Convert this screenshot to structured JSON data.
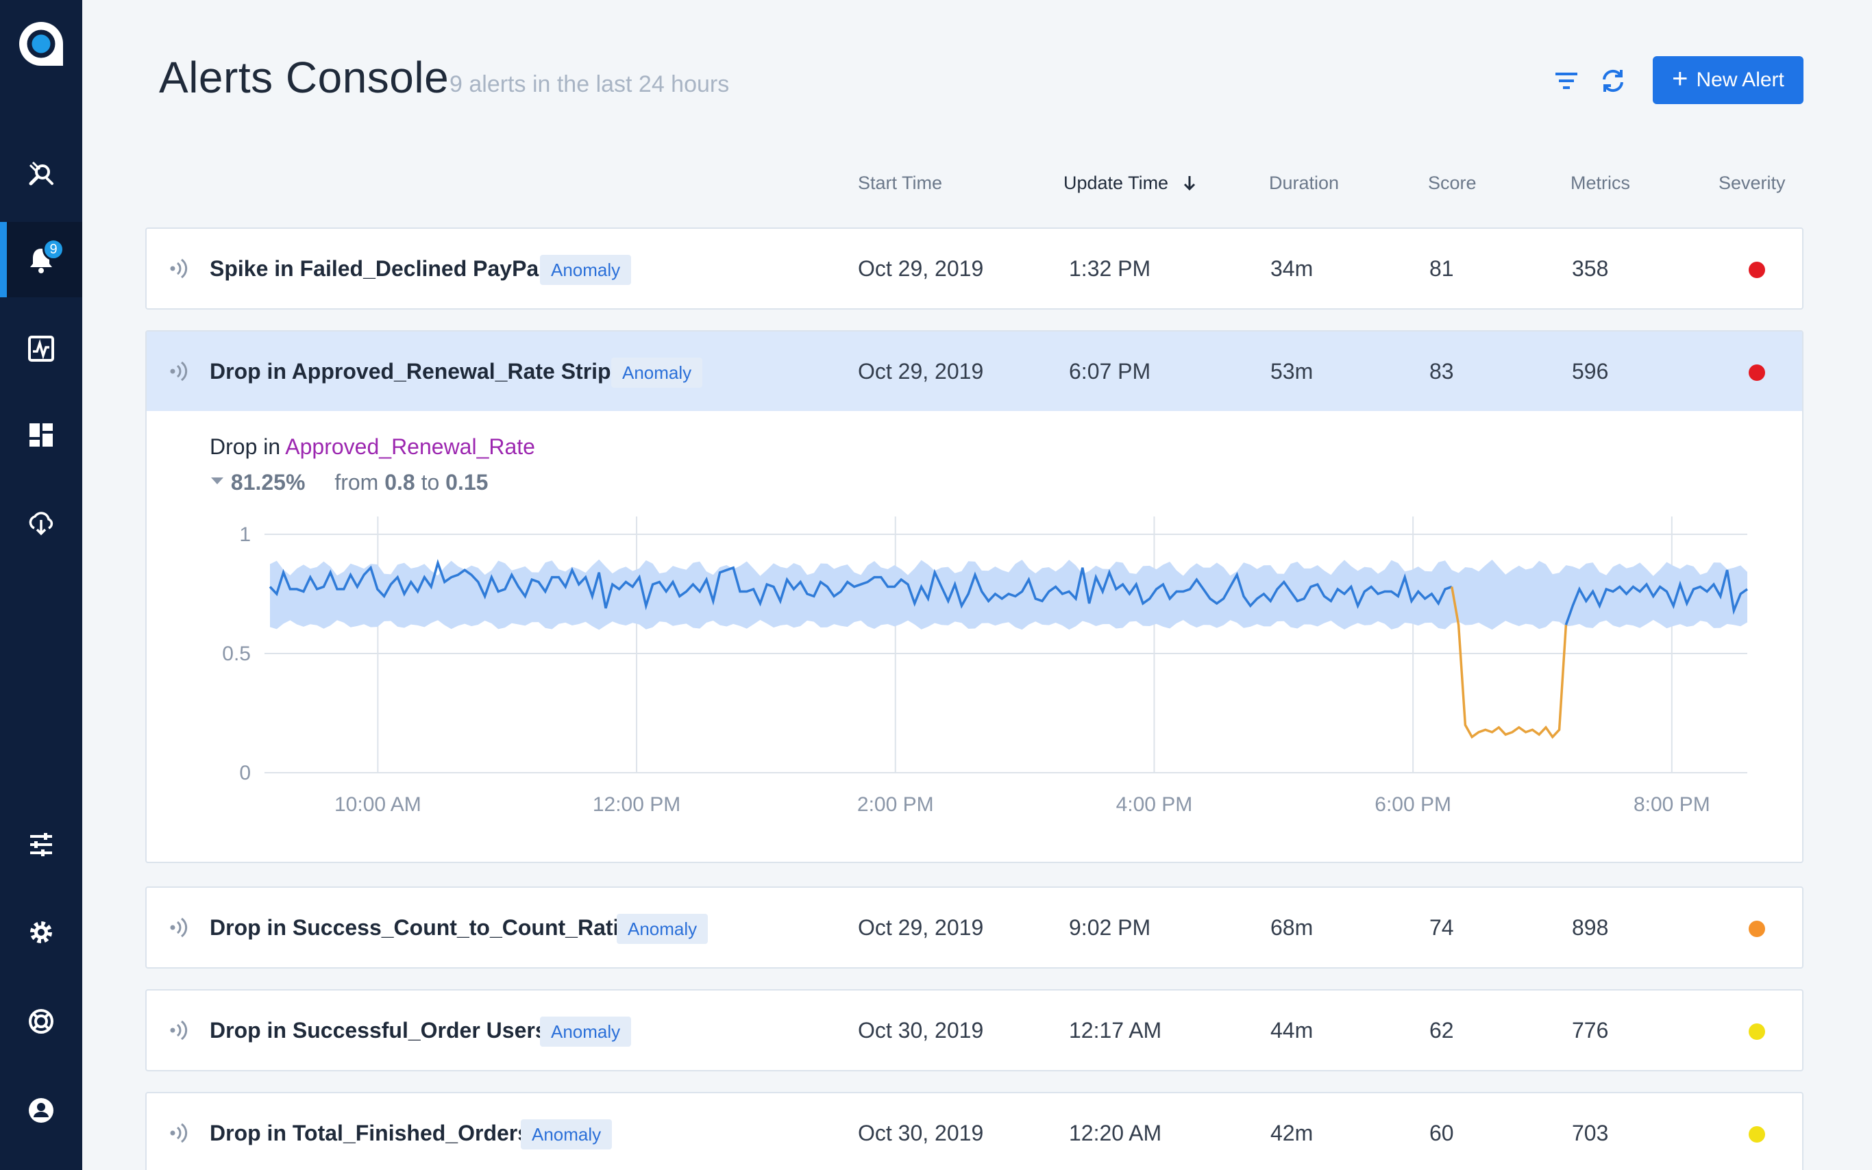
{
  "sidebar": {
    "badge_count": "9",
    "items": [
      {
        "icon": "search-satellite-icon"
      },
      {
        "icon": "bell-icon",
        "active": true
      },
      {
        "icon": "activity-chart-icon"
      },
      {
        "icon": "dashboard-icon"
      },
      {
        "icon": "cloud-download-icon"
      },
      {
        "icon": "sliders-icon"
      },
      {
        "icon": "gear-icon"
      },
      {
        "icon": "help-lifebuoy-icon"
      },
      {
        "icon": "user-icon"
      }
    ]
  },
  "header": {
    "title": "Alerts Console",
    "subtitle": "9 alerts in the last 24 hours",
    "new_alert_label": "New Alert"
  },
  "columns": {
    "start": "Start Time",
    "update": "Update Time",
    "duration": "Duration",
    "score": "Score",
    "metrics": "Metrics",
    "severity": "Severity"
  },
  "colors": {
    "accent": "#1f74e6",
    "sev_high": "#e31b23",
    "sev_medium": "#f5922b",
    "sev_low": "#f2e016",
    "band": "#c7dcfa",
    "line": "#2f7bd8",
    "anomaly_line": "#e8a23b"
  },
  "alerts": [
    {
      "name": "Spike in Failed_Declined PayPal",
      "tag": "Anomaly",
      "start": "Oct 29, 2019",
      "update": "1:32 PM",
      "duration": "34m",
      "score": "81",
      "metrics": "358",
      "severity": "high"
    },
    {
      "name": "Drop in Approved_Renewal_Rate Stripe",
      "tag": "Anomaly",
      "start": "Oct 29, 2019",
      "update": "6:07 PM",
      "duration": "53m",
      "score": "83",
      "metrics": "596",
      "severity": "high"
    },
    {
      "name": "Drop in Success_Count_to_Count_Ratio",
      "tag": "Anomaly",
      "start": "Oct 29, 2019",
      "update": "9:02 PM",
      "duration": "68m",
      "score": "74",
      "metrics": "898",
      "severity": "medium"
    },
    {
      "name": "Drop in Successful_Order Users",
      "tag": "Anomaly",
      "start": "Oct 30, 2019",
      "update": "12:17 AM",
      "duration": "44m",
      "score": "62",
      "metrics": "776",
      "severity": "low"
    },
    {
      "name": "Drop in Total_Finished_Orders",
      "tag": "Anomaly",
      "start": "Oct 30, 2019",
      "update": "12:20 AM",
      "duration": "42m",
      "score": "60",
      "metrics": "703",
      "severity": "low"
    }
  ],
  "detail": {
    "prefix": "Drop in",
    "metric": "Approved_Renewal_Rate",
    "change": "81.25%",
    "from_word": "from",
    "from_value": "0.8",
    "to_word": "to",
    "to_value": "0.15"
  },
  "chart_data": {
    "type": "line",
    "title": "",
    "xlabel": "",
    "ylabel": "",
    "ylim": [
      0,
      1
    ],
    "y_ticks": [
      "0",
      "0.5",
      "1"
    ],
    "x_tick_labels": [
      "10:00 AM",
      "12:00 PM",
      "2:00 PM",
      "4:00 PM",
      "6:00 PM",
      "8:00 PM"
    ],
    "x_range_hours": [
      "9:10 AM",
      "8:35 PM"
    ],
    "grid": true,
    "series": [
      {
        "name": "",
        "values": [
          0.78,
          0.75,
          0.84,
          0.77,
          0.77,
          0.76,
          0.82,
          0.77,
          0.78,
          0.84,
          0.77,
          0.77,
          0.83,
          0.78,
          0.83,
          0.86,
          0.77,
          0.74,
          0.79,
          0.82,
          0.75,
          0.8,
          0.76,
          0.82,
          0.78,
          0.88,
          0.8,
          0.82,
          0.83,
          0.85,
          0.83,
          0.8,
          0.74,
          0.82,
          0.76,
          0.77,
          0.83,
          0.78,
          0.74,
          0.81,
          0.8,
          0.76,
          0.82,
          0.82,
          0.78,
          0.85,
          0.79,
          0.82,
          0.74,
          0.84,
          0.69,
          0.79,
          0.77,
          0.8,
          0.78,
          0.82,
          0.7,
          0.79,
          0.8,
          0.76,
          0.8,
          0.74,
          0.76,
          0.79,
          0.76,
          0.81,
          0.72,
          0.84,
          0.85,
          0.86,
          0.76,
          0.76,
          0.77,
          0.71,
          0.79,
          0.78,
          0.72,
          0.81,
          0.77,
          0.8,
          0.75,
          0.74,
          0.8,
          0.78,
          0.74,
          0.76,
          0.8,
          0.78,
          0.79,
          0.8,
          0.82,
          0.82,
          0.78,
          0.78,
          0.81,
          0.79,
          0.71,
          0.78,
          0.73,
          0.84,
          0.78,
          0.72,
          0.79,
          0.7,
          0.75,
          0.83,
          0.76,
          0.72,
          0.75,
          0.73,
          0.75,
          0.74,
          0.76,
          0.81,
          0.73,
          0.72,
          0.76,
          0.78,
          0.75,
          0.76,
          0.73,
          0.86,
          0.71,
          0.82,
          0.76,
          0.84,
          0.77,
          0.79,
          0.75,
          0.79,
          0.71,
          0.73,
          0.77,
          0.79,
          0.73,
          0.76,
          0.76,
          0.77,
          0.81,
          0.77,
          0.73,
          0.71,
          0.73,
          0.78,
          0.83,
          0.74,
          0.7,
          0.73,
          0.75,
          0.72,
          0.77,
          0.8,
          0.76,
          0.72,
          0.73,
          0.78,
          0.79,
          0.74,
          0.72,
          0.77,
          0.75,
          0.78,
          0.7,
          0.76,
          0.78,
          0.75,
          0.76,
          0.76,
          0.74,
          0.82,
          0.72,
          0.76,
          0.73,
          0.75,
          0.71,
          0.77,
          0.78
        ],
        "anomaly_values": [
          0.78,
          0.62,
          0.2,
          0.15,
          0.17,
          0.18,
          0.17,
          0.19,
          0.16,
          0.17,
          0.19,
          0.17,
          0.18,
          0.16,
          0.19,
          0.15,
          0.18,
          0.62
        ],
        "post_values": [
          0.62,
          0.7,
          0.77,
          0.72,
          0.76,
          0.7,
          0.77,
          0.76,
          0.78,
          0.75,
          0.78,
          0.76,
          0.79,
          0.74,
          0.78,
          0.76,
          0.7,
          0.79,
          0.71,
          0.77,
          0.78,
          0.76,
          0.79,
          0.74,
          0.85,
          0.68,
          0.75,
          0.77
        ]
      }
    ],
    "expected_band": {
      "upper": 0.86,
      "lower": 0.62
    }
  }
}
